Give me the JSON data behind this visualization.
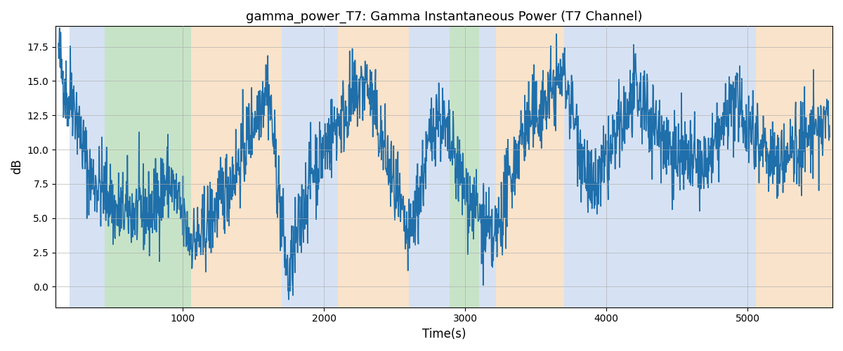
{
  "title": "gamma_power_T7: Gamma Instantaneous Power (T7 Channel)",
  "xlabel": "Time(s)",
  "ylabel": "dB",
  "xlim": [
    100,
    5600
  ],
  "ylim": [
    -1.5,
    19
  ],
  "yticks": [
    0.0,
    2.5,
    5.0,
    7.5,
    10.0,
    12.5,
    15.0,
    17.5
  ],
  "xticks": [
    1000,
    2000,
    3000,
    4000,
    5000
  ],
  "line_color": "#1f6fab",
  "line_width": 1.2,
  "bg_color": "#ffffff",
  "grid_color": "#aaaaaa",
  "bands": [
    {
      "xmin": 200,
      "xmax": 450,
      "color": "#aec6e8",
      "alpha": 0.5
    },
    {
      "xmin": 450,
      "xmax": 1060,
      "color": "#90c890",
      "alpha": 0.5
    },
    {
      "xmin": 1060,
      "xmax": 1700,
      "color": "#f5c897",
      "alpha": 0.5
    },
    {
      "xmin": 1700,
      "xmax": 2100,
      "color": "#aec6e8",
      "alpha": 0.5
    },
    {
      "xmin": 2100,
      "xmax": 2600,
      "color": "#f5c897",
      "alpha": 0.5
    },
    {
      "xmin": 2600,
      "xmax": 2890,
      "color": "#aec6e8",
      "alpha": 0.5
    },
    {
      "xmin": 2890,
      "xmax": 3100,
      "color": "#90c890",
      "alpha": 0.5
    },
    {
      "xmin": 3100,
      "xmax": 3220,
      "color": "#aec6e8",
      "alpha": 0.5
    },
    {
      "xmin": 3220,
      "xmax": 3700,
      "color": "#f5c897",
      "alpha": 0.5
    },
    {
      "xmin": 3700,
      "xmax": 4750,
      "color": "#aec6e8",
      "alpha": 0.5
    },
    {
      "xmin": 4750,
      "xmax": 5060,
      "color": "#aec6e8",
      "alpha": 0.5
    },
    {
      "xmin": 5060,
      "xmax": 5600,
      "color": "#f5c897",
      "alpha": 0.5
    }
  ]
}
